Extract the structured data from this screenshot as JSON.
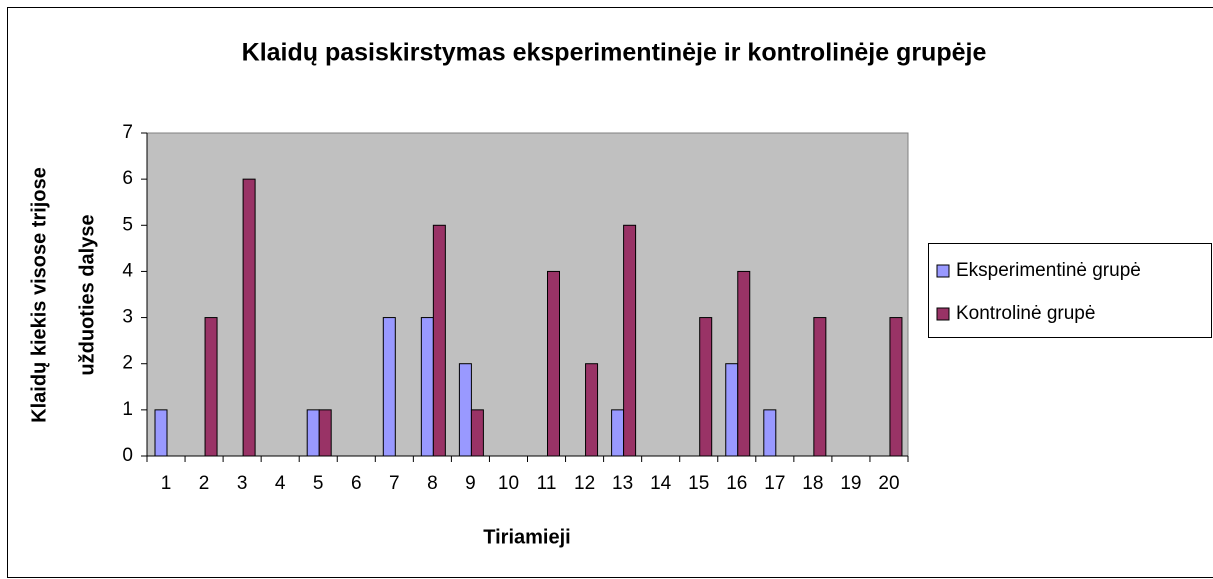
{
  "chart_data": {
    "type": "bar",
    "title": "Klaidų pasiskirstymas eksperimentinėje ir kontrolinėje grupėje",
    "xlabel": "Tiriamieji",
    "ylabel": [
      "Klaidų kiekis visose trijose",
      "užduoties dalyse"
    ],
    "categories": [
      "1",
      "2",
      "3",
      "4",
      "5",
      "6",
      "7",
      "8",
      "9",
      "10",
      "11",
      "12",
      "13",
      "14",
      "15",
      "16",
      "17",
      "18",
      "19",
      "20"
    ],
    "series": [
      {
        "name": "Eksperimentinė grupė",
        "color": "#9999ff",
        "values": [
          1,
          0,
          0,
          0,
          1,
          0,
          3,
          3,
          2,
          0,
          0,
          0,
          1,
          0,
          0,
          2,
          1,
          0,
          0,
          0
        ]
      },
      {
        "name": "Kontrolinė grupė",
        "color": "#993366",
        "values": [
          0,
          3,
          6,
          0,
          1,
          0,
          0,
          5,
          1,
          0,
          4,
          2,
          5,
          0,
          3,
          4,
          0,
          3,
          0,
          3
        ]
      }
    ],
    "ylim": [
      0,
      7
    ],
    "yticks": [
      0,
      1,
      2,
      3,
      4,
      5,
      6,
      7
    ],
    "legend": "right"
  }
}
